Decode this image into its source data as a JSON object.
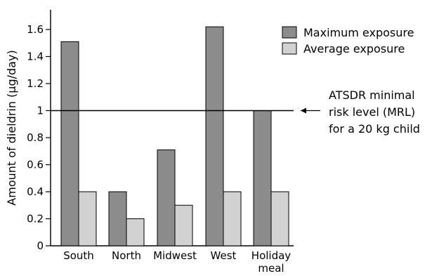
{
  "chart_data": {
    "type": "bar",
    "title": "",
    "xlabel": "",
    "ylabel": "Amount of dieldrin (µg/day)",
    "ylim": [
      0,
      1.6
    ],
    "yticks": [
      "0",
      "0.2",
      "0.4",
      "0.6",
      "0.8",
      "1",
      "1.2",
      "1.4",
      "1.6"
    ],
    "categories": [
      {
        "line1": "South",
        "line2": ""
      },
      {
        "line1": "North",
        "line2": ""
      },
      {
        "line1": "Midwest",
        "line2": ""
      },
      {
        "line1": "West",
        "line2": ""
      },
      {
        "line1": "Holiday",
        "line2": "meal"
      }
    ],
    "series": [
      {
        "name": "Maximum exposure",
        "color": "#8c8c8c",
        "values": [
          1.51,
          0.4,
          0.71,
          1.62,
          1.0
        ]
      },
      {
        "name": "Average exposure",
        "color": "#d2d2d2",
        "values": [
          0.4,
          0.2,
          0.3,
          0.4,
          0.4
        ]
      }
    ],
    "reference_line": {
      "value": 1.0,
      "label_lines": [
        "ATSDR minimal",
        "risk level (MRL)",
        "for a 20 kg child"
      ]
    },
    "legend_position": "top-right",
    "grid": false
  }
}
